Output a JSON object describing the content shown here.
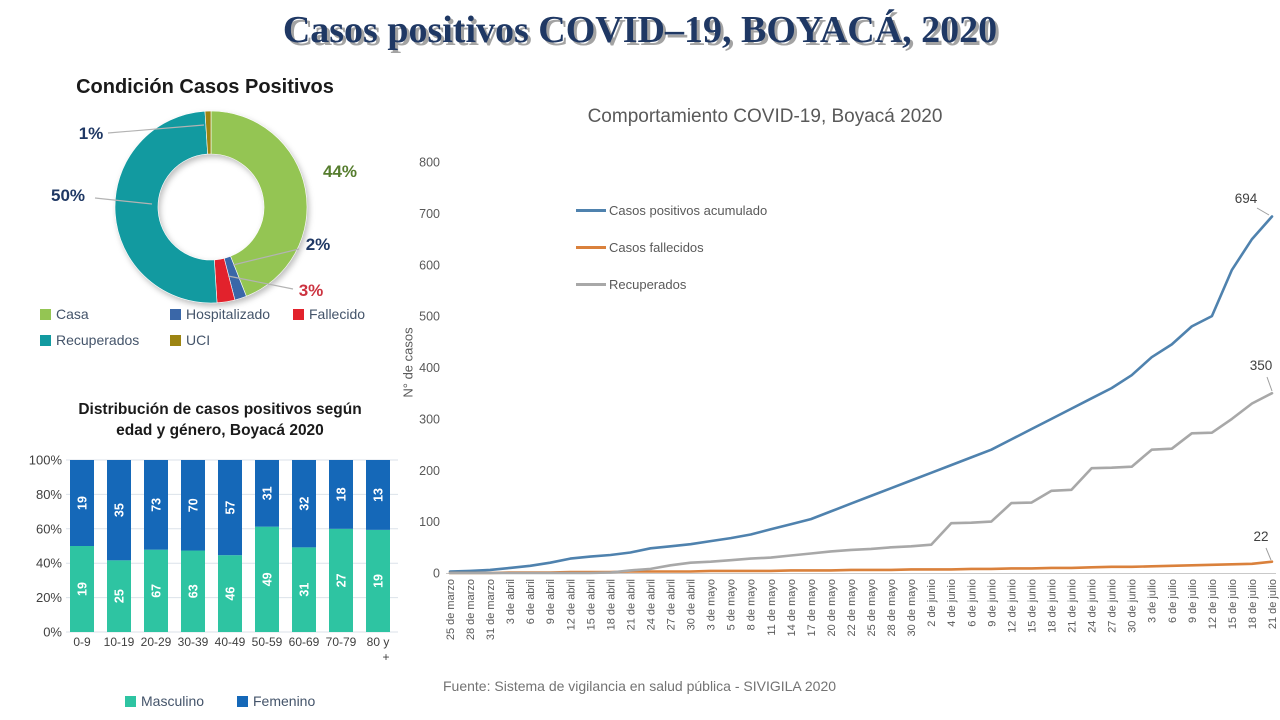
{
  "page": {
    "title": "Casos positivos COVID–19, BOYACÁ, 2020",
    "footer": "Fuente: Sistema de vigilancia en salud pública - SIVIGILA 2020"
  },
  "chart_data": [
    {
      "id": "condicion-casos-positivos",
      "type": "pie",
      "donut": true,
      "title": "Condición Casos Positivos",
      "labels": [
        "Casa",
        "Hospitalizado",
        "Fallecido",
        "Recuperados",
        "UCI"
      ],
      "values_pct": [
        44,
        2,
        3,
        50,
        1
      ],
      "colors": [
        "#94c553",
        "#3a67a8",
        "#e2222c",
        "#129aa0",
        "#9c8412"
      ],
      "pct_labels": [
        {
          "slice": "Casa",
          "text": "44%",
          "color": "#567d2e"
        },
        {
          "slice": "Hospitalizado",
          "text": "2%",
          "color": "#1f3864"
        },
        {
          "slice": "Fallecido",
          "text": "3%",
          "color": "#cc3340"
        },
        {
          "slice": "Recuperados",
          "text": "50%",
          "color": "#1f3864"
        },
        {
          "slice": "UCI",
          "text": "1%",
          "color": "#1f3864"
        }
      ],
      "legend_position": "bottom"
    },
    {
      "id": "distribucion-edad-genero",
      "type": "bar",
      "stacked_percent": true,
      "title": "Distribución de casos positivos según edad y género, Boyacá 2020",
      "title_lines": [
        "Distribución de casos positivos según",
        "edad y género, Boyacá 2020"
      ],
      "categories": [
        "0-9",
        "10-19",
        "20-29",
        "30-39",
        "40-49",
        "50-59",
        "60-69",
        "70-79",
        "80 y +"
      ],
      "series": [
        {
          "name": "Masculino",
          "color": "#2ec4a2",
          "values": [
            19,
            25,
            67,
            63,
            46,
            49,
            31,
            27,
            19
          ]
        },
        {
          "name": "Femenino",
          "color": "#1568b8",
          "values": [
            19,
            35,
            73,
            70,
            57,
            31,
            32,
            18,
            13
          ]
        }
      ],
      "yticks": [
        "0%",
        "20%",
        "40%",
        "60%",
        "80%",
        "100%"
      ],
      "grid": true,
      "legend_position": "bottom"
    },
    {
      "id": "comportamiento-covid19",
      "type": "line",
      "title": "Comportamiento COVID-19, Boyacá 2020",
      "xlabel": "",
      "ylabel": "N° de casos",
      "ylim": [
        0,
        800
      ],
      "yticks": [
        0,
        100,
        200,
        300,
        400,
        500,
        600,
        700,
        800
      ],
      "grid": false,
      "legend_position": "inside-upper-left",
      "x": [
        "25 de marzo",
        "28 de marzo",
        "31 de marzo",
        "3 de abril",
        "6 de abril",
        "9 de abril",
        "12 de abril",
        "15 de abril",
        "18 de abril",
        "21 de abril",
        "24 de abril",
        "27 de abril",
        "30 de abril",
        "3 de mayo",
        "5 de mayo",
        "8 de mayo",
        "11 de mayo",
        "14 de mayo",
        "17 de mayo",
        "20 de mayo",
        "22 de mayo",
        "25 de mayo",
        "28 de mayo",
        "30 de mayo",
        "2 de junio",
        "4 de junio",
        "6 de junio",
        "9 de junio",
        "12 de junio",
        "15 de junio",
        "18 de junio",
        "21 de junio",
        "24 de junio",
        "27 de junio",
        "30 de junio",
        "3 de julio",
        "6 de julio",
        "9 de julio",
        "12 de julio",
        "15 de julio",
        "18 de julio",
        "21 de julio"
      ],
      "series": [
        {
          "name": "Casos positivos acumulado",
          "color": "#4f82ae",
          "end_label": "694",
          "values": [
            3,
            4,
            6,
            10,
            14,
            20,
            28,
            32,
            35,
            40,
            48,
            52,
            56,
            62,
            68,
            75,
            85,
            95,
            105,
            120,
            135,
            150,
            165,
            180,
            195,
            210,
            225,
            240,
            260,
            280,
            300,
            320,
            340,
            360,
            385,
            420,
            445,
            480,
            500,
            590,
            650,
            694
          ]
        },
        {
          "name": "Casos fallecidos",
          "color": "#da813c",
          "end_label": "22",
          "values": [
            0,
            0,
            0,
            1,
            1,
            1,
            2,
            2,
            2,
            3,
            3,
            3,
            3,
            4,
            4,
            4,
            4,
            5,
            5,
            5,
            6,
            6,
            6,
            7,
            7,
            7,
            8,
            8,
            9,
            9,
            10,
            10,
            11,
            12,
            12,
            13,
            14,
            15,
            16,
            17,
            18,
            22
          ]
        },
        {
          "name": "Recuperados",
          "color": "#a8a8a8",
          "end_label": "350",
          "values": [
            0,
            0,
            0,
            0,
            0,
            0,
            0,
            0,
            1,
            5,
            8,
            15,
            20,
            22,
            25,
            28,
            30,
            34,
            38,
            42,
            45,
            47,
            50,
            52,
            55,
            97,
            98,
            100,
            136,
            137,
            160,
            162,
            204,
            205,
            207,
            240,
            242,
            272,
            273,
            300,
            330,
            350
          ]
        }
      ]
    }
  ]
}
